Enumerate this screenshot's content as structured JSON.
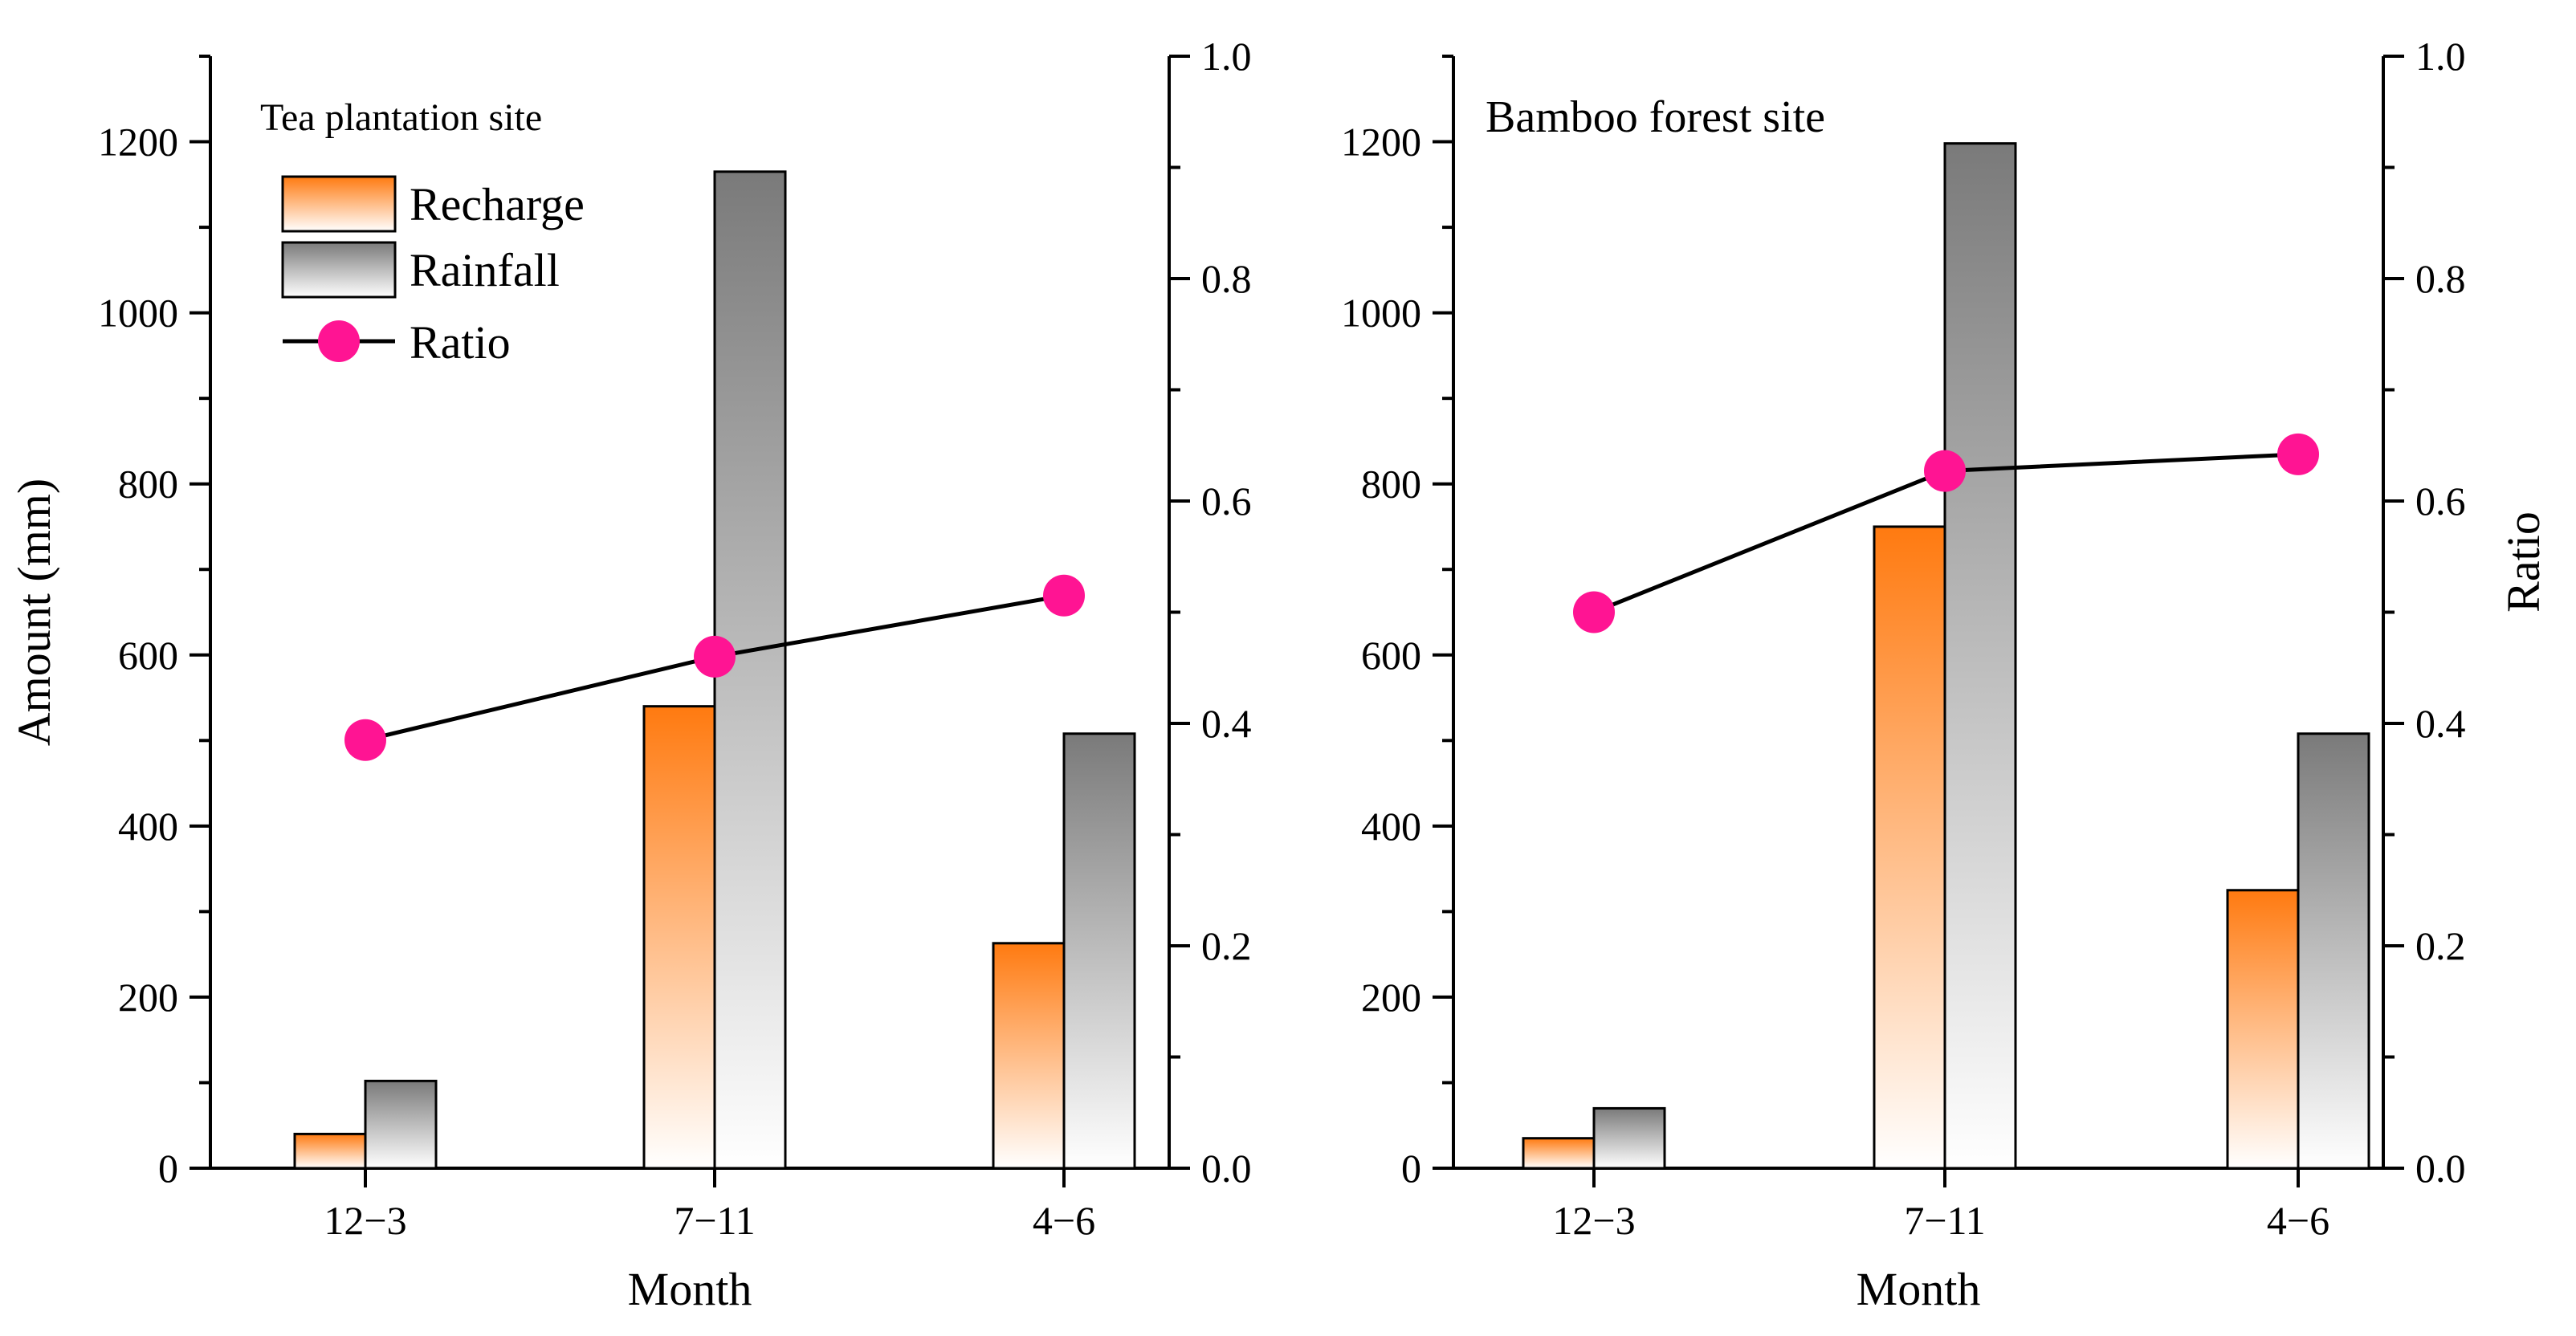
{
  "colors": {
    "recharge_top": "#ff7a10",
    "recharge_bottom": "#ffffff",
    "rainfall_top": "#7a7a7a",
    "rainfall_bottom": "#ffffff",
    "ratio_marker": "#ff1493",
    "ratio_line": "#000000"
  },
  "legend": {
    "recharge": "Recharge",
    "rainfall": "Rainfall",
    "ratio": "Ratio"
  },
  "chart_data": [
    {
      "type": "bar",
      "panel_label": "Tea plantation site",
      "categories": [
        "12−3",
        "7−11",
        "4−6"
      ],
      "series": [
        {
          "name": "Recharge",
          "values": [
            40,
            540,
            263
          ]
        },
        {
          "name": "Rainfall",
          "values": [
            102,
            1165,
            508
          ]
        },
        {
          "name": "Ratio",
          "axis": "right",
          "values": [
            0.385,
            0.46,
            0.515
          ]
        }
      ],
      "xlabel": "Month",
      "ylabel": "Amount  (mm)",
      "ylabel_right": "",
      "ylim": [
        0,
        1300
      ],
      "yticks": [
        0,
        200,
        400,
        600,
        800,
        1000,
        1200
      ],
      "ylim_right": [
        0,
        1.0
      ],
      "yticks_right": [
        0.0,
        0.2,
        0.4,
        0.6,
        0.8,
        1.0
      ],
      "legend_position": "top-left",
      "grid": false
    },
    {
      "type": "bar",
      "panel_label": "Bamboo forest site",
      "categories": [
        "12−3",
        "7−11",
        "4−6"
      ],
      "series": [
        {
          "name": "Recharge",
          "values": [
            35,
            750,
            325
          ]
        },
        {
          "name": "Rainfall",
          "values": [
            70,
            1198,
            508
          ]
        },
        {
          "name": "Ratio",
          "axis": "right",
          "values": [
            0.5,
            0.627,
            0.642
          ]
        }
      ],
      "xlabel": "Month",
      "ylabel": "",
      "ylabel_right": "Ratio",
      "ylim": [
        0,
        1300
      ],
      "yticks": [
        0,
        200,
        400,
        600,
        800,
        1000,
        1200
      ],
      "ylim_right": [
        0,
        1.0
      ],
      "yticks_right": [
        0.0,
        0.2,
        0.4,
        0.6,
        0.8,
        1.0
      ],
      "legend_position": "none",
      "grid": false
    }
  ]
}
